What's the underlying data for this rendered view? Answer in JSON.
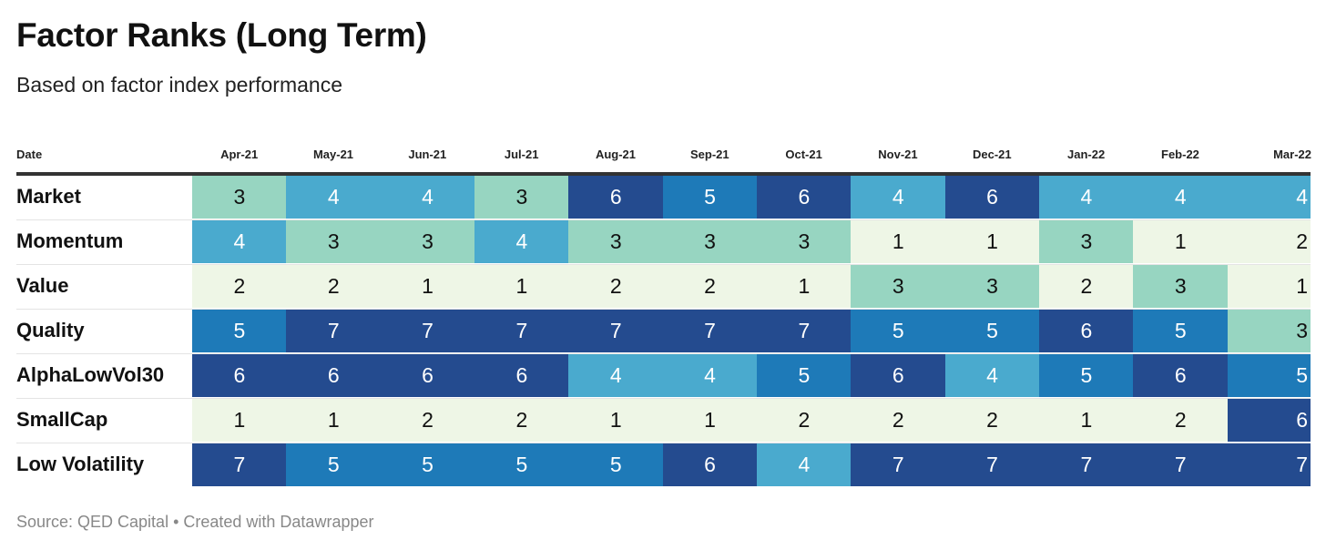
{
  "header": {
    "title": "Factor Ranks (Long Term)",
    "subtitle": "Based on factor index performance",
    "date_column_label": "Date"
  },
  "footer": {
    "source": "Source: QED Capital • Created with Datawrapper"
  },
  "colors": {
    "1": "#eef6e6",
    "2": "#eef6e6",
    "3": "#97d5c1",
    "4": "#4aaace",
    "5": "#1e7ab8",
    "6": "#244b8f",
    "7": "#244b8f",
    "text_dark": "#111111",
    "text_light": "#ffffff"
  },
  "chart_data": {
    "type": "heatmap",
    "title": "Factor Ranks (Long Term)",
    "subtitle": "Based on factor index performance",
    "x": [
      "Apr-21",
      "May-21",
      "Jun-21",
      "Jul-21",
      "Aug-21",
      "Sep-21",
      "Oct-21",
      "Nov-21",
      "Dec-21",
      "Jan-22",
      "Feb-22",
      "Mar-22"
    ],
    "rows": [
      {
        "name": "Market",
        "values": [
          3,
          4,
          4,
          3,
          6,
          5,
          6,
          4,
          6,
          4,
          4,
          4
        ]
      },
      {
        "name": "Momentum",
        "values": [
          4,
          3,
          3,
          4,
          3,
          3,
          3,
          1,
          1,
          3,
          1,
          2
        ]
      },
      {
        "name": "Value",
        "values": [
          2,
          2,
          1,
          1,
          2,
          2,
          1,
          3,
          3,
          2,
          3,
          1
        ]
      },
      {
        "name": "Quality",
        "values": [
          5,
          7,
          7,
          7,
          7,
          7,
          7,
          5,
          5,
          6,
          5,
          3
        ]
      },
      {
        "name": "AlphaLowVol30",
        "values": [
          6,
          6,
          6,
          6,
          4,
          4,
          5,
          6,
          4,
          5,
          6,
          5
        ]
      },
      {
        "name": "SmallCap",
        "values": [
          1,
          1,
          2,
          2,
          1,
          1,
          2,
          2,
          2,
          1,
          2,
          6
        ]
      },
      {
        "name": "Low Volatility",
        "values": [
          7,
          5,
          5,
          5,
          5,
          6,
          4,
          7,
          7,
          7,
          7,
          7
        ]
      }
    ]
  }
}
